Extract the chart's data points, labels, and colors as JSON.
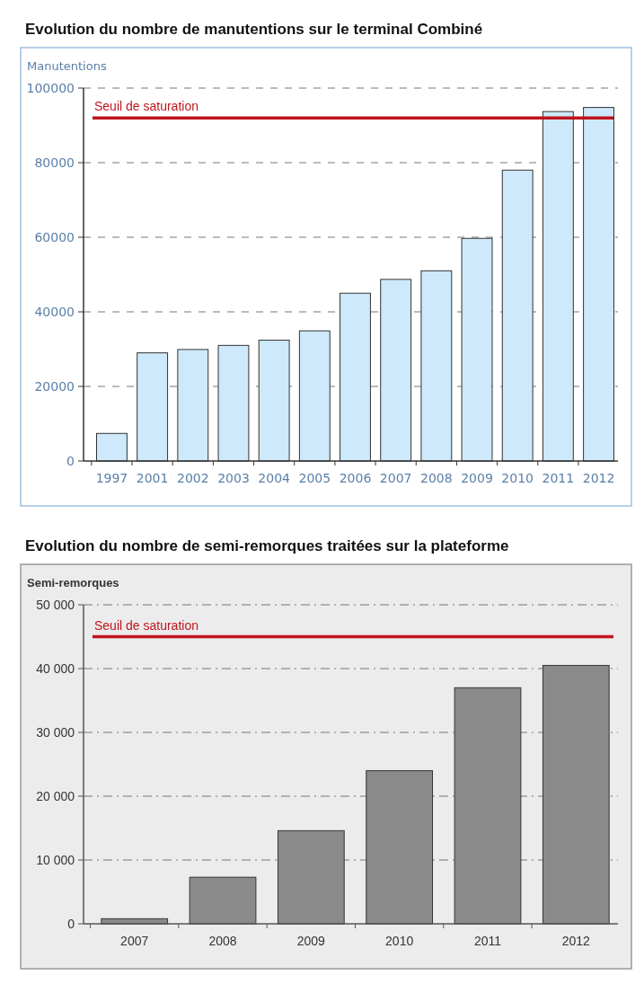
{
  "chart_data": [
    {
      "type": "bar",
      "title": "Evolution du nombre de manutentions sur le terminal Combiné",
      "ylabel": "Manutentions",
      "categories": [
        "1997",
        "2001",
        "2002",
        "2003",
        "2004",
        "2005",
        "2006",
        "2007",
        "2008",
        "2009",
        "2010",
        "2011",
        "2012"
      ],
      "values": [
        7400,
        29000,
        29900,
        31000,
        32400,
        34900,
        45000,
        48700,
        51000,
        59700,
        78000,
        93700,
        94800
      ],
      "color": "#cde9fb",
      "ylim": [
        0,
        100000
      ],
      "yticks": [
        0,
        20000,
        40000,
        60000,
        80000,
        100000
      ],
      "grid": "y",
      "ref_lines": [
        {
          "axis": "y",
          "value": 92000,
          "label": "Seuil de saturation",
          "color": "#c0141c"
        }
      ]
    },
    {
      "type": "bar",
      "title": "Evolution du nombre de semi-remorques traitées sur la plateforme",
      "ylabel": "Semi-remorques",
      "categories": [
        "2007",
        "2008",
        "2009",
        "2010",
        "2011",
        "2012"
      ],
      "values": [
        800,
        7300,
        14600,
        24000,
        37000,
        40500
      ],
      "color": "#8a8a8a",
      "ylim": [
        0,
        50000
      ],
      "yticks": [
        {
          "value": 0,
          "label": "0"
        },
        {
          "value": 10000,
          "label": "10 000"
        },
        {
          "value": 20000,
          "label": "20 000"
        },
        {
          "value": 30000,
          "label": "30 000"
        },
        {
          "value": 40000,
          "label": "40 000"
        },
        {
          "value": 50000,
          "label": "50 000"
        }
      ],
      "grid": "y",
      "ref_lines": [
        {
          "axis": "y",
          "value": 45000,
          "label": "Seuil de saturation",
          "color": "#c0141c"
        }
      ]
    }
  ]
}
